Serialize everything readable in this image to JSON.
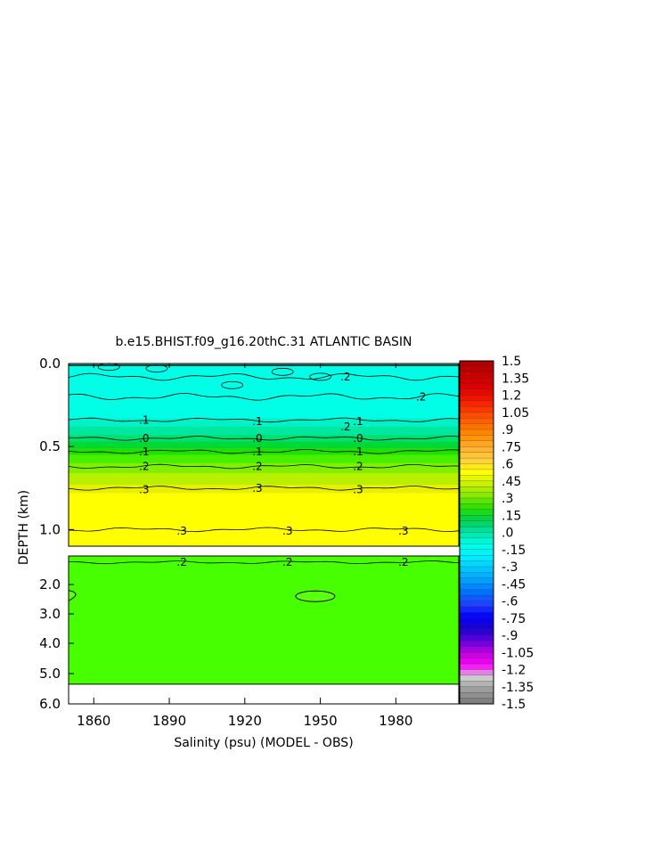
{
  "chart_data": {
    "type": "heatmap",
    "title": "b.e15.BHIST.f09_g16.20thC.31 ATLANTIC BASIN",
    "xlabel": "Salinity (psu) (MODEL - OBS)",
    "ylabel": "DEPTH (km)",
    "xlim": [
      1850,
      2005
    ],
    "x_ticks": [
      "1860",
      "1890",
      "1920",
      "1950",
      "1980"
    ],
    "upper_panel": {
      "ylim": [
        0.0,
        1.1
      ],
      "y_ticks": [
        "0.0",
        "0.5",
        "1.0"
      ],
      "contours": [
        {
          "level": -0.2,
          "label": ".2",
          "depth": 0.08
        },
        {
          "level": -0.1,
          "label": ".1",
          "depth": 0.34
        },
        {
          "level": 0.0,
          "label": ".0",
          "depth": 0.45
        },
        {
          "level": 0.1,
          "label": ".1",
          "depth": 0.53
        },
        {
          "level": 0.2,
          "label": ".2",
          "depth": 0.62
        },
        {
          "level": 0.3,
          "label": ".3",
          "depth": 0.75
        },
        {
          "level": 0.3,
          "label": ".3",
          "depth": 1.0
        }
      ],
      "bands": [
        {
          "from": 0.0,
          "to": 0.33,
          "color": "#00ffe6"
        },
        {
          "from": 0.33,
          "to": 0.38,
          "color": "#00f2c8"
        },
        {
          "from": 0.38,
          "to": 0.43,
          "color": "#00e8a0"
        },
        {
          "from": 0.43,
          "to": 0.47,
          "color": "#00e070"
        },
        {
          "from": 0.47,
          "to": 0.51,
          "color": "#00d838"
        },
        {
          "from": 0.51,
          "to": 0.55,
          "color": "#20e000"
        },
        {
          "from": 0.55,
          "to": 0.6,
          "color": "#48f000"
        },
        {
          "from": 0.6,
          "to": 0.66,
          "color": "#80f000"
        },
        {
          "from": 0.66,
          "to": 0.73,
          "color": "#b8f000"
        },
        {
          "from": 0.73,
          "to": 0.78,
          "color": "#e8f000"
        },
        {
          "from": 0.78,
          "to": 1.1,
          "color": "#ffff00"
        }
      ]
    },
    "lower_panel": {
      "ylim": [
        1.1,
        6.0
      ],
      "y_ticks": [
        "2.0",
        "3.0",
        "4.0",
        "5.0",
        "6.0"
      ],
      "contours": [
        {
          "level": 0.2,
          "label": ".2",
          "depth": 1.3
        }
      ],
      "fill_color": "#48ff00",
      "data_bottom": 5.35
    },
    "contour_label_positions": [
      {
        "label": ".2",
        "x": 1960,
        "d": 0.08
      },
      {
        "label": ".2",
        "x": 1990,
        "d": 0.2
      },
      {
        "label": ".2",
        "x": 1960,
        "d": 0.38
      },
      {
        "label": ".1",
        "x": 1880,
        "d": 0.34
      },
      {
        "label": ".1",
        "x": 1925,
        "d": 0.35
      },
      {
        "label": ".1",
        "x": 1965,
        "d": 0.35
      },
      {
        "label": ".0",
        "x": 1880,
        "d": 0.45
      },
      {
        "label": ".0",
        "x": 1925,
        "d": 0.45
      },
      {
        "label": ".0",
        "x": 1965,
        "d": 0.45
      },
      {
        "label": ".1",
        "x": 1880,
        "d": 0.53
      },
      {
        "label": ".1",
        "x": 1925,
        "d": 0.53
      },
      {
        "label": ".1",
        "x": 1965,
        "d": 0.53
      },
      {
        "label": ".2",
        "x": 1880,
        "d": 0.62
      },
      {
        "label": ".2",
        "x": 1925,
        "d": 0.62
      },
      {
        "label": ".2",
        "x": 1965,
        "d": 0.62
      },
      {
        "label": ".3",
        "x": 1880,
        "d": 0.76
      },
      {
        "label": ".3",
        "x": 1925,
        "d": 0.75
      },
      {
        "label": ".3",
        "x": 1965,
        "d": 0.76
      },
      {
        "label": ".3",
        "x": 1895,
        "d": 1.01
      },
      {
        "label": ".3",
        "x": 1937,
        "d": 1.01
      },
      {
        "label": ".3",
        "x": 1983,
        "d": 1.01
      },
      {
        "label": ".2",
        "x": 1895,
        "d": 1.3
      },
      {
        "label": ".2",
        "x": 1937,
        "d": 1.3
      },
      {
        "label": ".2",
        "x": 1983,
        "d": 1.3
      }
    ],
    "colorbar": {
      "labels": [
        "1.5",
        "1.35",
        "1.2",
        "1.05",
        ".9",
        ".75",
        ".6",
        ".45",
        ".3",
        ".15",
        ".0",
        "-.15",
        "-.3",
        "-.45",
        "-.6",
        "-.75",
        "-.9",
        "-1.05",
        "-1.2",
        "-1.35",
        "-1.5"
      ],
      "stops_top_to_bottom": [
        "#b00000",
        "#c80000",
        "#e00000",
        "#f21800",
        "#ff4000",
        "#ff6a00",
        "#ff9000",
        "#ffb030",
        "#ffd040",
        "#ffff00",
        "#c8f000",
        "#80ea00",
        "#28e000",
        "#00d050",
        "#00e4a8",
        "#00ffe6",
        "#00f0ff",
        "#00c8ff",
        "#00a0ff",
        "#0070ff",
        "#2040ff",
        "#0000ff",
        "#1a00d0",
        "#6000e0",
        "#c000e0",
        "#ff00ff",
        "#d0d0d0",
        "#a0a0a0",
        "#808080"
      ]
    }
  }
}
